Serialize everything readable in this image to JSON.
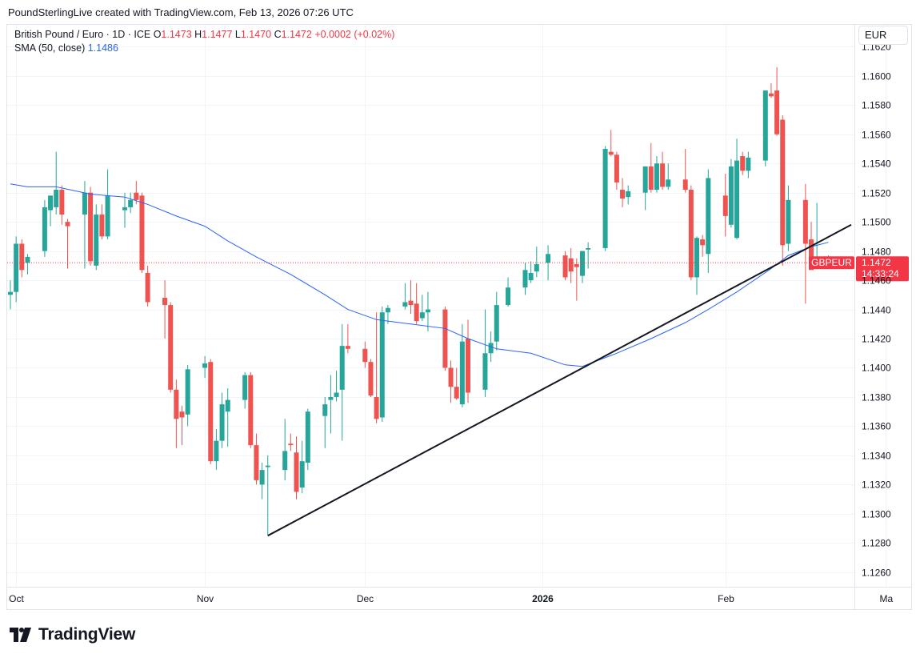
{
  "header": {
    "text": "PoundSterlingLive created with TradingView.com, Feb 13, 2026 07:26 UTC"
  },
  "legend": {
    "title": "British Pound / Euro · 1D · ICE",
    "o_label": "O",
    "o_value": "1.1473",
    "h_label": "H",
    "h_value": "1.1477",
    "l_label": "L",
    "l_value": "1.1470",
    "c_label": "C",
    "c_value": "1.1472",
    "change": "+0.0002 (+0.02%)",
    "sma_label": "SMA (50, close)",
    "sma_value": "1.1486"
  },
  "currency": "EUR",
  "price_tag": {
    "symbol": "GBPEUR",
    "price": "1.1472",
    "countdown": "14:33:24"
  },
  "logo": {
    "text": "TradingView",
    "icon": "tradingview-logo-icon"
  },
  "colors": {
    "up": "#26a69a",
    "down": "#ef5350",
    "sma": "#2962ff",
    "trendline": "#131722",
    "grid": "#f0f3fa",
    "tag": "#f23645"
  },
  "chart_data": {
    "type": "candlestick",
    "title": "British Pound / Euro · 1D · ICE",
    "ylim": [
      1.125,
      1.1635
    ],
    "y_ticks": [
      "1.1620",
      "1.1600",
      "1.1580",
      "1.1560",
      "1.1540",
      "1.1520",
      "1.1500",
      "1.1480",
      "1.1460",
      "1.1440",
      "1.1420",
      "1.1400",
      "1.1380",
      "1.1360",
      "1.1340",
      "1.1320",
      "1.1300",
      "1.1280",
      "1.1260"
    ],
    "x_tick_labels": [
      {
        "label": "Oct",
        "bold": false,
        "date": "2025-10-01"
      },
      {
        "label": "Nov",
        "bold": false,
        "date": "2025-11-03"
      },
      {
        "label": "Dec",
        "bold": false,
        "date": "2025-12-01"
      },
      {
        "label": "2026",
        "bold": true,
        "date": "2026-01-01"
      },
      {
        "label": "Feb",
        "bold": false,
        "date": "2026-02-02"
      },
      {
        "label": "Ma",
        "bold": false,
        "date": "2026-03-02"
      }
    ],
    "candles": [
      {
        "d": "2025-09-30",
        "o": 1.145,
        "h": 1.146,
        "l": 1.144,
        "c": 1.1452
      },
      {
        "d": "2025-10-01",
        "o": 1.1452,
        "h": 1.149,
        "l": 1.1445,
        "c": 1.1485
      },
      {
        "d": "2025-10-02",
        "o": 1.1485,
        "h": 1.1488,
        "l": 1.1462,
        "c": 1.1467
      },
      {
        "d": "2025-10-03",
        "o": 1.1472,
        "h": 1.1478,
        "l": 1.1464,
        "c": 1.1476
      },
      {
        "d": "2025-10-06",
        "o": 1.148,
        "h": 1.1515,
        "l": 1.1476,
        "c": 1.151
      },
      {
        "d": "2025-10-07",
        "o": 1.1508,
        "h": 1.1518,
        "l": 1.1497,
        "c": 1.1518
      },
      {
        "d": "2025-10-08",
        "o": 1.151,
        "h": 1.1548,
        "l": 1.1505,
        "c": 1.1522
      },
      {
        "d": "2025-10-09",
        "o": 1.1522,
        "h": 1.1525,
        "l": 1.1498,
        "c": 1.1505
      },
      {
        "d": "2025-10-10",
        "o": 1.15,
        "h": 1.1502,
        "l": 1.1468,
        "c": 1.1497
      },
      {
        "d": "2025-10-13",
        "o": 1.1505,
        "h": 1.1528,
        "l": 1.1468,
        "c": 1.152
      },
      {
        "d": "2025-10-14",
        "o": 1.152,
        "h": 1.1524,
        "l": 1.147,
        "c": 1.1473
      },
      {
        "d": "2025-10-15",
        "o": 1.147,
        "h": 1.1512,
        "l": 1.1467,
        "c": 1.1505
      },
      {
        "d": "2025-10-16",
        "o": 1.1505,
        "h": 1.1512,
        "l": 1.1488,
        "c": 1.149
      },
      {
        "d": "2025-10-17",
        "o": 1.149,
        "h": 1.1536,
        "l": 1.1488,
        "c": 1.1518
      },
      {
        "d": "2025-10-20",
        "o": 1.1508,
        "h": 1.152,
        "l": 1.1496,
        "c": 1.151
      },
      {
        "d": "2025-10-21",
        "o": 1.151,
        "h": 1.152,
        "l": 1.1506,
        "c": 1.1515
      },
      {
        "d": "2025-10-22",
        "o": 1.152,
        "h": 1.1528,
        "l": 1.1512,
        "c": 1.1515
      },
      {
        "d": "2025-10-23",
        "o": 1.1518,
        "h": 1.152,
        "l": 1.1465,
        "c": 1.1467
      },
      {
        "d": "2025-10-24",
        "o": 1.1465,
        "h": 1.147,
        "l": 1.1442,
        "c": 1.1445
      },
      {
        "d": "2025-10-27",
        "o": 1.1448,
        "h": 1.146,
        "l": 1.142,
        "c": 1.1443
      },
      {
        "d": "2025-10-28",
        "o": 1.1443,
        "h": 1.1445,
        "l": 1.1383,
        "c": 1.1385
      },
      {
        "d": "2025-10-29",
        "o": 1.1385,
        "h": 1.1392,
        "l": 1.1345,
        "c": 1.1365
      },
      {
        "d": "2025-10-30",
        "o": 1.137,
        "h": 1.1374,
        "l": 1.1347,
        "c": 1.1366
      },
      {
        "d": "2025-10-31",
        "o": 1.1368,
        "h": 1.1402,
        "l": 1.136,
        "c": 1.1399
      },
      {
        "d": "2025-11-03",
        "o": 1.14,
        "h": 1.1408,
        "l": 1.1393,
        "c": 1.1403
      },
      {
        "d": "2025-11-04",
        "o": 1.1404,
        "h": 1.1406,
        "l": 1.1334,
        "c": 1.1336
      },
      {
        "d": "2025-11-05",
        "o": 1.1336,
        "h": 1.1358,
        "l": 1.133,
        "c": 1.135
      },
      {
        "d": "2025-11-06",
        "o": 1.135,
        "h": 1.1383,
        "l": 1.1345,
        "c": 1.1375
      },
      {
        "d": "2025-11-07",
        "o": 1.137,
        "h": 1.1386,
        "l": 1.1346,
        "c": 1.1378
      },
      {
        "d": "2025-11-10",
        "o": 1.1378,
        "h": 1.1397,
        "l": 1.1372,
        "c": 1.1395
      },
      {
        "d": "2025-11-11",
        "o": 1.1395,
        "h": 1.1397,
        "l": 1.1345,
        "c": 1.1347
      },
      {
        "d": "2025-11-12",
        "o": 1.1347,
        "h": 1.1355,
        "l": 1.132,
        "c": 1.1323
      },
      {
        "d": "2025-11-13",
        "o": 1.132,
        "h": 1.1335,
        "l": 1.131,
        "c": 1.133
      },
      {
        "d": "2025-11-14",
        "o": 1.1332,
        "h": 1.134,
        "l": 1.1285,
        "c": 1.1333
      },
      {
        "d": "2025-11-17",
        "o": 1.133,
        "h": 1.1365,
        "l": 1.1323,
        "c": 1.1343
      },
      {
        "d": "2025-11-18",
        "o": 1.1348,
        "h": 1.1355,
        "l": 1.1343,
        "c": 1.1347
      },
      {
        "d": "2025-11-19",
        "o": 1.1342,
        "h": 1.1353,
        "l": 1.131,
        "c": 1.1315
      },
      {
        "d": "2025-11-20",
        "o": 1.1318,
        "h": 1.135,
        "l": 1.1314,
        "c": 1.1336
      },
      {
        "d": "2025-11-21",
        "o": 1.1335,
        "h": 1.1372,
        "l": 1.133,
        "c": 1.137
      },
      {
        "d": "2025-11-24",
        "o": 1.1367,
        "h": 1.138,
        "l": 1.1345,
        "c": 1.1375
      },
      {
        "d": "2025-11-25",
        "o": 1.1378,
        "h": 1.1395,
        "l": 1.1355,
        "c": 1.138
      },
      {
        "d": "2025-11-26",
        "o": 1.138,
        "h": 1.1398,
        "l": 1.1377,
        "c": 1.1383
      },
      {
        "d": "2025-11-27",
        "o": 1.1385,
        "h": 1.143,
        "l": 1.135,
        "c": 1.1415
      },
      {
        "d": "2025-11-28",
        "o": 1.1415,
        "h": 1.143,
        "l": 1.141,
        "c": 1.1413
      },
      {
        "d": "2025-12-01",
        "o": 1.1413,
        "h": 1.1418,
        "l": 1.14,
        "c": 1.1404
      },
      {
        "d": "2025-12-02",
        "o": 1.1404,
        "h": 1.1406,
        "l": 1.138,
        "c": 1.1381
      },
      {
        "d": "2025-12-03",
        "o": 1.138,
        "h": 1.1438,
        "l": 1.1362,
        "c": 1.1365
      },
      {
        "d": "2025-12-04",
        "o": 1.1366,
        "h": 1.1442,
        "l": 1.1363,
        "c": 1.1438
      },
      {
        "d": "2025-12-05",
        "o": 1.1438,
        "h": 1.1443,
        "l": 1.143,
        "c": 1.1441
      },
      {
        "d": "2025-12-08",
        "o": 1.1442,
        "h": 1.1458,
        "l": 1.144,
        "c": 1.1445
      },
      {
        "d": "2025-12-09",
        "o": 1.1446,
        "h": 1.146,
        "l": 1.1437,
        "c": 1.1443
      },
      {
        "d": "2025-12-10",
        "o": 1.1444,
        "h": 1.1458,
        "l": 1.143,
        "c": 1.1432
      },
      {
        "d": "2025-12-11",
        "o": 1.1434,
        "h": 1.145,
        "l": 1.1432,
        "c": 1.1438
      },
      {
        "d": "2025-12-12",
        "o": 1.1438,
        "h": 1.1452,
        "l": 1.1425,
        "c": 1.144
      },
      {
        "d": "2025-12-15",
        "o": 1.144,
        "h": 1.1442,
        "l": 1.1398,
        "c": 1.14
      },
      {
        "d": "2025-12-16",
        "o": 1.14,
        "h": 1.1405,
        "l": 1.1376,
        "c": 1.1387
      },
      {
        "d": "2025-12-17",
        "o": 1.1387,
        "h": 1.14,
        "l": 1.1378,
        "c": 1.1379
      },
      {
        "d": "2025-12-18",
        "o": 1.1375,
        "h": 1.143,
        "l": 1.1373,
        "c": 1.1418
      },
      {
        "d": "2025-12-19",
        "o": 1.142,
        "h": 1.1433,
        "l": 1.1376,
        "c": 1.1383
      },
      {
        "d": "2025-12-22",
        "o": 1.1385,
        "h": 1.144,
        "l": 1.138,
        "c": 1.141
      },
      {
        "d": "2025-12-23",
        "o": 1.141,
        "h": 1.1425,
        "l": 1.1404,
        "c": 1.1417
      },
      {
        "d": "2025-12-24",
        "o": 1.1418,
        "h": 1.1452,
        "l": 1.1412,
        "c": 1.1443
      },
      {
        "d": "2025-12-26",
        "o": 1.1443,
        "h": 1.1462,
        "l": 1.1442,
        "c": 1.1455
      },
      {
        "d": "2025-12-29",
        "o": 1.1455,
        "h": 1.1472,
        "l": 1.145,
        "c": 1.1467
      },
      {
        "d": "2025-12-30",
        "o": 1.146,
        "h": 1.1473,
        "l": 1.1458,
        "c": 1.1465
      },
      {
        "d": "2025-12-31",
        "o": 1.1466,
        "h": 1.1483,
        "l": 1.1462,
        "c": 1.1471
      },
      {
        "d": "2026-01-02",
        "o": 1.1472,
        "h": 1.1484,
        "l": 1.146,
        "c": 1.1478
      },
      {
        "d": "2026-01-05",
        "o": 1.1477,
        "h": 1.148,
        "l": 1.146,
        "c": 1.1462
      },
      {
        "d": "2026-01-06",
        "o": 1.1475,
        "h": 1.1482,
        "l": 1.1458,
        "c": 1.1466
      },
      {
        "d": "2026-01-07",
        "o": 1.1471,
        "h": 1.1475,
        "l": 1.1446,
        "c": 1.1469
      },
      {
        "d": "2026-01-08",
        "o": 1.1463,
        "h": 1.148,
        "l": 1.1458,
        "c": 1.148
      },
      {
        "d": "2026-01-09",
        "o": 1.1481,
        "h": 1.1486,
        "l": 1.1468,
        "c": 1.1482
      },
      {
        "d": "2026-01-12",
        "o": 1.1482,
        "h": 1.1552,
        "l": 1.148,
        "c": 1.155
      },
      {
        "d": "2026-01-13",
        "o": 1.1548,
        "h": 1.1563,
        "l": 1.1545,
        "c": 1.1546
      },
      {
        "d": "2026-01-14",
        "o": 1.1546,
        "h": 1.1548,
        "l": 1.1522,
        "c": 1.1527
      },
      {
        "d": "2026-01-15",
        "o": 1.1522,
        "h": 1.153,
        "l": 1.151,
        "c": 1.1516
      },
      {
        "d": "2026-01-16",
        "o": 1.1517,
        "h": 1.1525,
        "l": 1.1512,
        "c": 1.1521
      },
      {
        "d": "2026-01-19",
        "o": 1.152,
        "h": 1.1538,
        "l": 1.1508,
        "c": 1.1538
      },
      {
        "d": "2026-01-20",
        "o": 1.1538,
        "h": 1.1554,
        "l": 1.152,
        "c": 1.1522
      },
      {
        "d": "2026-01-21",
        "o": 1.1522,
        "h": 1.1545,
        "l": 1.152,
        "c": 1.154
      },
      {
        "d": "2026-01-22",
        "o": 1.154,
        "h": 1.1548,
        "l": 1.1522,
        "c": 1.1524
      },
      {
        "d": "2026-01-23",
        "o": 1.1524,
        "h": 1.154,
        "l": 1.1522,
        "c": 1.1529
      },
      {
        "d": "2026-01-26",
        "o": 1.1529,
        "h": 1.155,
        "l": 1.152,
        "c": 1.1522
      },
      {
        "d": "2026-01-27",
        "o": 1.1522,
        "h": 1.1525,
        "l": 1.146,
        "c": 1.1462
      },
      {
        "d": "2026-01-28",
        "o": 1.1462,
        "h": 1.149,
        "l": 1.145,
        "c": 1.1489
      },
      {
        "d": "2026-01-29",
        "o": 1.1488,
        "h": 1.1491,
        "l": 1.1476,
        "c": 1.1484
      },
      {
        "d": "2026-01-30",
        "o": 1.1478,
        "h": 1.1536,
        "l": 1.1465,
        "c": 1.153
      },
      {
        "d": "2026-02-02",
        "o": 1.1518,
        "h": 1.1533,
        "l": 1.149,
        "c": 1.1504
      },
      {
        "d": "2026-02-03",
        "o": 1.1498,
        "h": 1.1543,
        "l": 1.1496,
        "c": 1.1538
      },
      {
        "d": "2026-02-04",
        "o": 1.1489,
        "h": 1.1557,
        "l": 1.1488,
        "c": 1.1542
      },
      {
        "d": "2026-02-05",
        "o": 1.1545,
        "h": 1.1548,
        "l": 1.1532,
        "c": 1.1535
      },
      {
        "d": "2026-02-06",
        "o": 1.1535,
        "h": 1.1548,
        "l": 1.153,
        "c": 1.1544
      },
      {
        "d": "2026-02-09",
        "o": 1.1542,
        "h": 1.159,
        "l": 1.1538,
        "c": 1.159
      },
      {
        "d": "2026-02-10",
        "o": 1.1588,
        "h": 1.1595,
        "l": 1.1585,
        "c": 1.1586
      },
      {
        "d": "2026-02-11",
        "o": 1.159,
        "h": 1.1606,
        "l": 1.1559,
        "c": 1.156
      },
      {
        "d": "2026-02-12",
        "o": 1.157,
        "h": 1.1573,
        "l": 1.147,
        "c": 1.1484
      },
      {
        "d": "2026-02-13",
        "o": 1.1485,
        "h": 1.1525,
        "l": 1.148,
        "c": 1.1515
      },
      {
        "d": "2026-02-16",
        "o": 1.1515,
        "h": 1.1526,
        "l": 1.1444,
        "c": 1.1485
      },
      {
        "d": "2026-02-17",
        "o": 1.1488,
        "h": 1.15,
        "l": 1.1468,
        "c": 1.1467
      },
      {
        "d": "2026-02-18",
        "o": 1.1472,
        "h": 1.1513,
        "l": 1.1468,
        "c": 1.1476
      },
      {
        "d": "2026-02-19",
        "o": 1.1473,
        "h": 1.1474,
        "l": 1.1468,
        "c": 1.147
      },
      {
        "d": "2026-02-20",
        "o": 1.1473,
        "h": 1.1477,
        "l": 1.147,
        "c": 1.1472
      }
    ],
    "sma": {
      "name": "SMA (50, close)",
      "points": [
        {
          "d": "2025-09-30",
          "v": 1.1526
        },
        {
          "d": "2025-10-03",
          "v": 1.1524
        },
        {
          "d": "2025-10-08",
          "v": 1.1524
        },
        {
          "d": "2025-10-14",
          "v": 1.1519
        },
        {
          "d": "2025-10-20",
          "v": 1.1517
        },
        {
          "d": "2025-10-24",
          "v": 1.1512
        },
        {
          "d": "2025-10-29",
          "v": 1.1504
        },
        {
          "d": "2025-11-03",
          "v": 1.1497
        },
        {
          "d": "2025-11-07",
          "v": 1.1487
        },
        {
          "d": "2025-11-12",
          "v": 1.1476
        },
        {
          "d": "2025-11-18",
          "v": 1.1464
        },
        {
          "d": "2025-11-24",
          "v": 1.145
        },
        {
          "d": "2025-11-28",
          "v": 1.144
        },
        {
          "d": "2025-12-03",
          "v": 1.1433
        },
        {
          "d": "2025-12-09",
          "v": 1.143
        },
        {
          "d": "2025-12-15",
          "v": 1.1427
        },
        {
          "d": "2025-12-19",
          "v": 1.142
        },
        {
          "d": "2025-12-24",
          "v": 1.1413
        },
        {
          "d": "2025-12-30",
          "v": 1.141
        },
        {
          "d": "2026-01-05",
          "v": 1.1402
        },
        {
          "d": "2026-01-08",
          "v": 1.1401
        },
        {
          "d": "2026-01-14",
          "v": 1.141
        },
        {
          "d": "2026-01-20",
          "v": 1.142
        },
        {
          "d": "2026-01-26",
          "v": 1.1431
        },
        {
          "d": "2026-01-30",
          "v": 1.144
        },
        {
          "d": "2026-02-04",
          "v": 1.1452
        },
        {
          "d": "2026-02-10",
          "v": 1.1468
        },
        {
          "d": "2026-02-13",
          "v": 1.1477
        },
        {
          "d": "2026-02-17",
          "v": 1.1483
        },
        {
          "d": "2026-02-20",
          "v": 1.1486
        }
      ]
    },
    "trendline": {
      "start": {
        "d": "2025-11-14",
        "v": 1.1285
      },
      "end": {
        "d": "2026-02-24",
        "v": 1.1498
      }
    },
    "last_price": 1.1472
  }
}
